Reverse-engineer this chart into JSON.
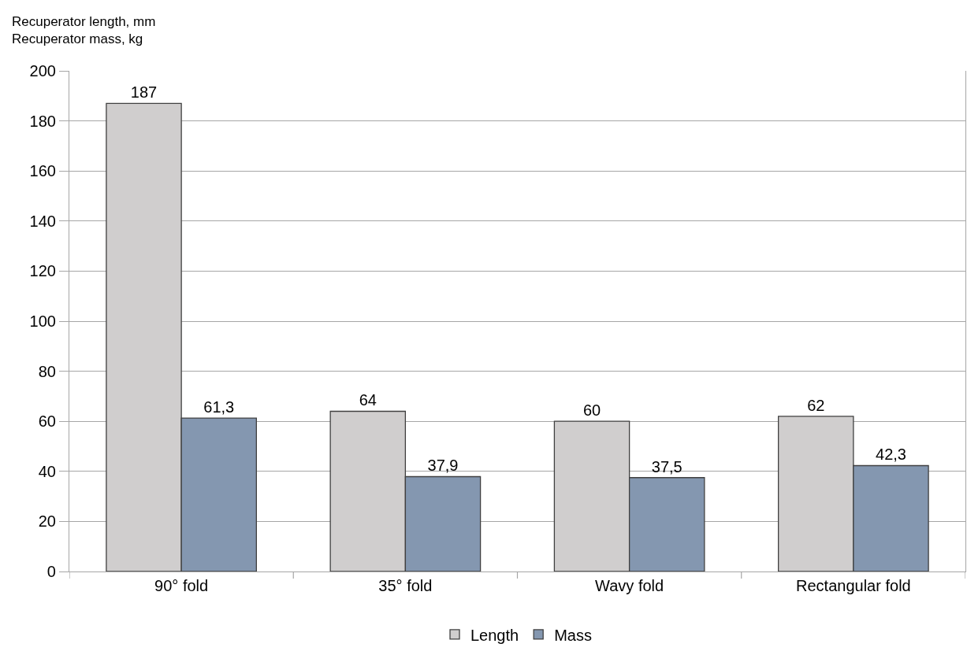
{
  "chart_data": {
    "type": "bar",
    "ylabel": "Recuperator length, mm\nRecuperator mass, kg",
    "categories": [
      "90° fold",
      "35° fold",
      "Wavy fold",
      "Rectangular fold"
    ],
    "series": [
      {
        "name": "Length",
        "color": "#d0cece",
        "values": [
          187,
          64,
          60,
          62
        ],
        "value_labels": [
          "187",
          "64",
          "60",
          "62"
        ]
      },
      {
        "name": "Mass",
        "color": "#8497b0",
        "values": [
          61.3,
          37.9,
          37.5,
          42.3
        ],
        "value_labels": [
          "61,3",
          "37,9",
          "37,5",
          "42,3"
        ]
      }
    ],
    "ylim": [
      0,
      200
    ],
    "yticks": [
      0,
      20,
      40,
      60,
      80,
      100,
      120,
      140,
      160,
      180,
      200
    ],
    "grid": "y",
    "legend": "bottom"
  }
}
